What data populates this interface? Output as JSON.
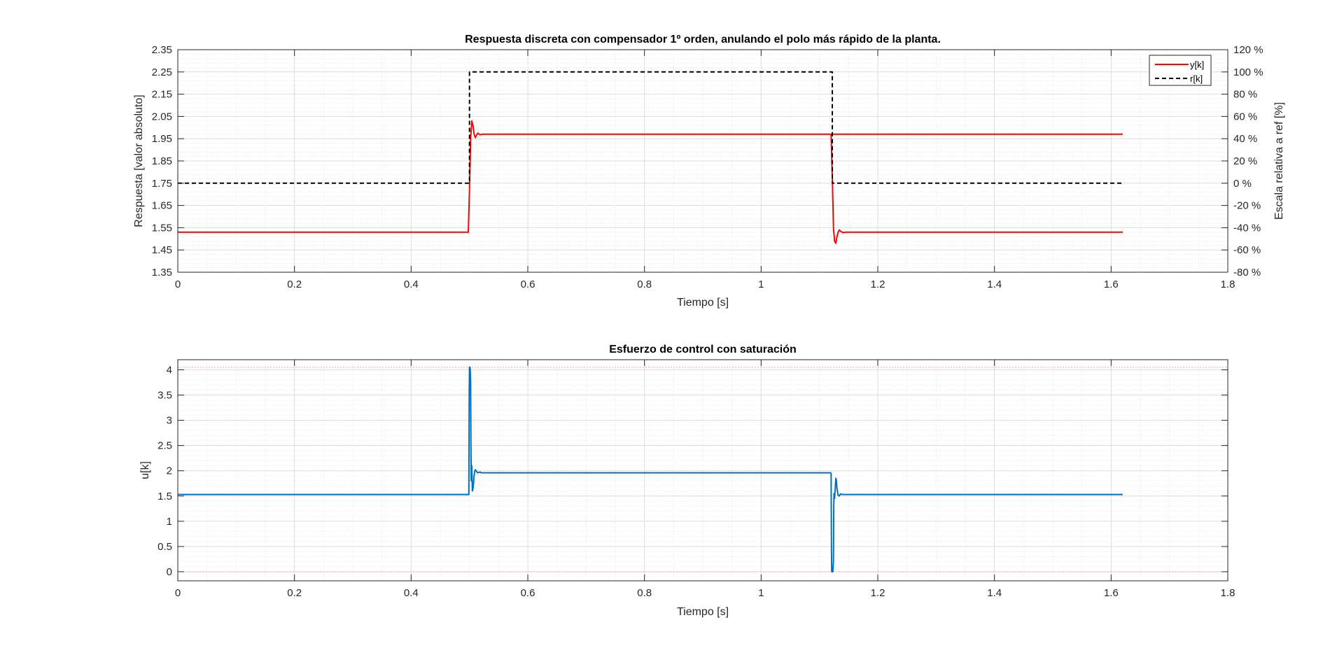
{
  "chart_data": [
    {
      "type": "line",
      "title": "Respuesta discreta con compensador 1º orden, anulando el polo más rápido de la planta.",
      "xlabel": "Tiempo [s]",
      "ylabel": "Respuesta [valor absoluto]",
      "ylabel_right": "Escala relativa a ref [%]",
      "xlim": [
        0,
        1.8
      ],
      "ylim": [
        1.35,
        2.35
      ],
      "ylim_right": [
        -80,
        120
      ],
      "xticks": [
        "0",
        "0.2",
        "0.4",
        "0.6",
        "0.8",
        "1",
        "1.2",
        "1.4",
        "1.6",
        "1.8"
      ],
      "yticks": [
        "1.35",
        "1.45",
        "1.55",
        "1.65",
        "1.75",
        "1.85",
        "1.95",
        "2.05",
        "2.15",
        "2.25",
        "2.35"
      ],
      "yticks_right": [
        "-80 %",
        "-60 %",
        "-40 %",
        "-20 %",
        "0 %",
        "20 %",
        "40 %",
        "60 %",
        "80 %",
        "100 %",
        "120 %"
      ],
      "grid": "major-and-minor",
      "legend_position": "top-right",
      "series": [
        {
          "name": "y[k]",
          "color": "#ff0000",
          "style": "solid",
          "x": [
            0,
            0.498,
            0.5,
            0.502,
            0.504,
            0.506,
            0.508,
            0.51,
            0.512,
            0.514,
            0.518,
            0.522,
            1.62
          ],
          "y": [
            1.53,
            1.53,
            1.72,
            1.95,
            2.03,
            2.01,
            1.97,
            1.955,
            1.965,
            1.975,
            1.968,
            1.97,
            1.97
          ],
          "x2": [
            1.12,
            1.122,
            1.124,
            1.126,
            1.128,
            1.13,
            1.132,
            1.134,
            1.136,
            1.14,
            1.144,
            1.62
          ],
          "y2": [
            1.97,
            1.78,
            1.55,
            1.49,
            1.48,
            1.51,
            1.53,
            1.54,
            1.535,
            1.528,
            1.53,
            1.53
          ]
        },
        {
          "name": "r[k]",
          "color": "#000000",
          "style": "dashed",
          "x": [
            0,
            0.5,
            0.5,
            1.122,
            1.122,
            1.62
          ],
          "y": [
            1.75,
            1.75,
            2.25,
            2.25,
            1.75,
            1.75
          ]
        }
      ]
    },
    {
      "type": "line",
      "title": "Esfuerzo de control con saturación",
      "xlabel": "Tiempo [s]",
      "ylabel": "u[k]",
      "xlim": [
        0,
        1.8
      ],
      "ylim": [
        -0.18,
        4.2
      ],
      "xticks": [
        "0",
        "0.2",
        "0.4",
        "0.6",
        "0.8",
        "1",
        "1.2",
        "1.4",
        "1.6",
        "1.8"
      ],
      "yticks": [
        "0",
        "0.5",
        "1",
        "1.5",
        "2",
        "2.5",
        "3",
        "3.5",
        "4"
      ],
      "grid": "major-and-minor",
      "saturation_lines": [
        0,
        4.05
      ],
      "saturation_color": "#ff9999",
      "series": [
        {
          "color": "#0072bd",
          "style": "solid",
          "x": [
            0,
            0.499,
            0.4995,
            0.5,
            0.501,
            0.502,
            0.5025,
            0.503,
            0.504,
            0.505,
            0.506,
            0.507,
            0.508,
            0.509,
            0.51,
            0.512,
            0.514,
            0.516,
            0.518,
            0.52,
            1.12
          ],
          "y": [
            1.53,
            1.53,
            3.5,
            4.05,
            4.05,
            3.8,
            2.5,
            1.8,
            2.1,
            1.6,
            1.65,
            1.75,
            1.9,
            1.99,
            2.02,
            1.99,
            1.96,
            1.965,
            1.975,
            1.96,
            1.96
          ],
          "x2": [
            1.12,
            1.1205,
            1.121,
            1.122,
            1.123,
            1.124,
            1.1245,
            1.125,
            1.126,
            1.127,
            1.128,
            1.129,
            1.13,
            1.132,
            1.134,
            1.136,
            1.138,
            1.14,
            1.62
          ],
          "y2": [
            1.96,
            0.5,
            0.0,
            0.0,
            0.0,
            0.2,
            1.3,
            1.55,
            1.45,
            1.65,
            1.85,
            1.82,
            1.65,
            1.52,
            1.5,
            1.54,
            1.535,
            1.53,
            1.53
          ]
        }
      ]
    }
  ]
}
